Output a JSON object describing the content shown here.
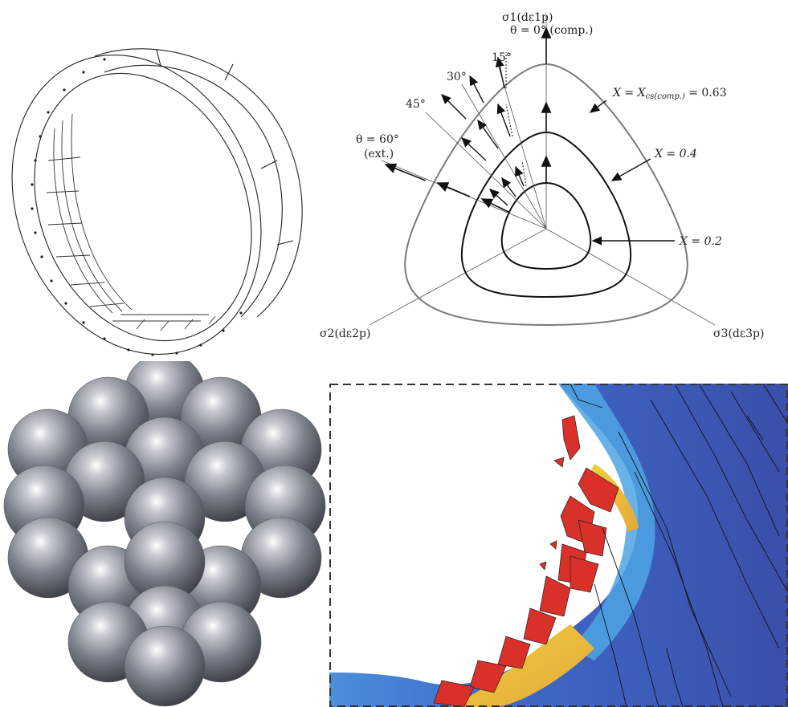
{
  "yield_diagram": {
    "axes": {
      "sigma1": "σ1(dε1p)",
      "sigma2": "σ2(dε2p)",
      "sigma3": "σ3(dε3p)"
    },
    "theta_labels": {
      "t0": "θ = 0° (comp.)",
      "t15": "15°",
      "t30": "30°",
      "t45": "45°",
      "t60a": "θ = 60°",
      "t60b": "(ext.)"
    },
    "curve_labels": {
      "c063_prefix": "X = X",
      "c063_sub": "cs(comp.)",
      "c063_suffix": " = 0.63",
      "c04": "X = 0.4",
      "c02": "X = 0.2"
    },
    "colors": {
      "outer": "#7a7a7a",
      "inner": "#111111"
    }
  },
  "fracture_colors": {
    "background": "#ffffff",
    "far_field": "#3b55b0",
    "mid": "#3f6fd0",
    "light": "#4aa0e0",
    "hot": "#e8c23a",
    "fragments": "#d9302a"
  }
}
